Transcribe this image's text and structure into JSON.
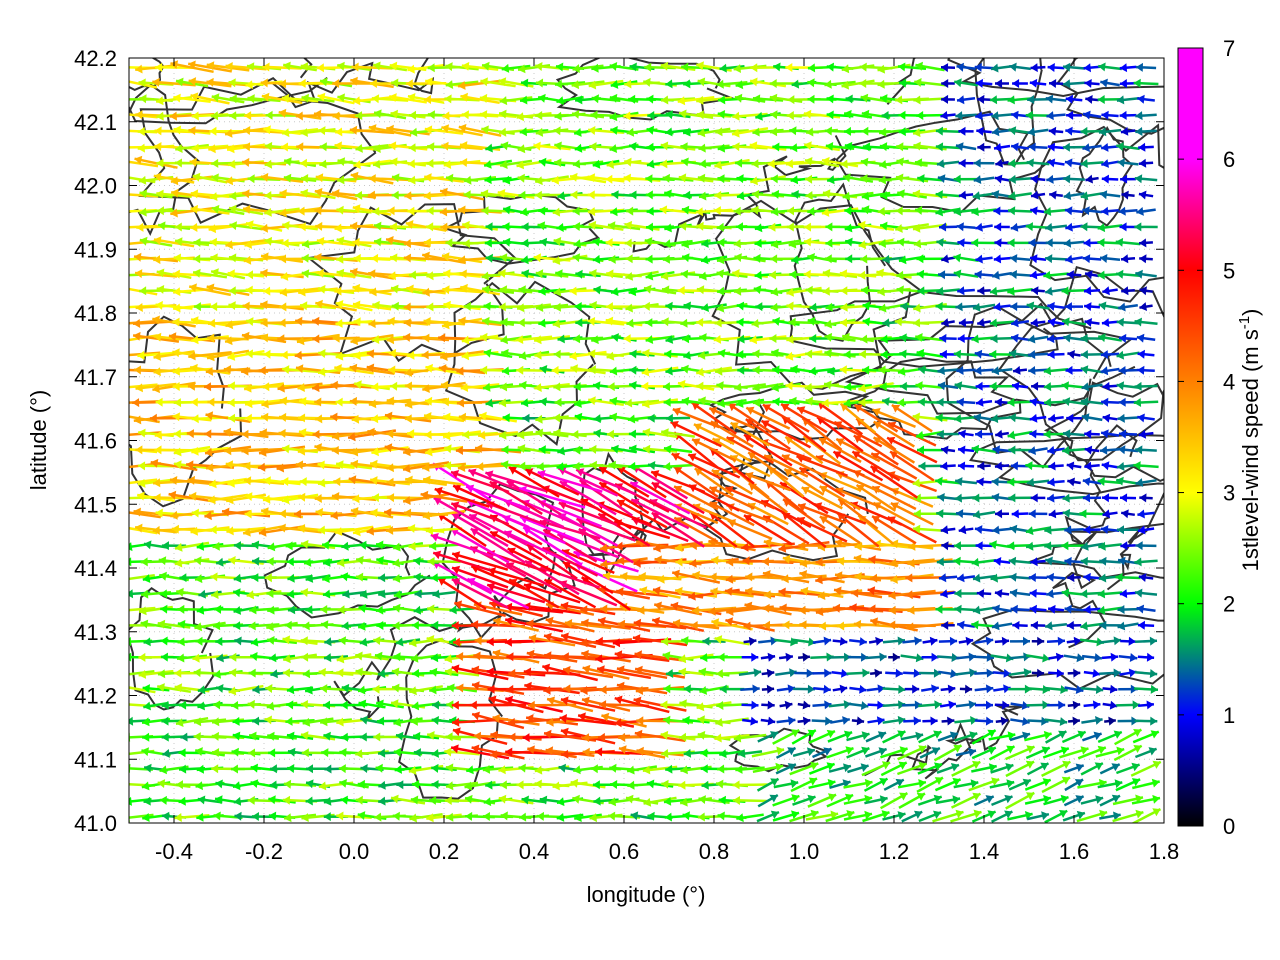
{
  "chart_data": {
    "type": "vector-field",
    "xlabel": "longitude (°)",
    "ylabel": "latitude (°)",
    "colorbar_label": {
      "main": "1stlevel-wind speed (m s",
      "sup": "-1",
      "close": ")"
    },
    "xlim": [
      -0.5,
      1.8
    ],
    "ylim": [
      41.0,
      42.2
    ],
    "xticks": [
      -0.4,
      -0.2,
      0.0,
      0.2,
      0.4,
      0.6,
      0.8,
      1.0,
      1.2,
      1.4,
      1.6,
      1.8
    ],
    "xtick_labels": [
      "-0.4",
      "-0.2",
      "0.0",
      "0.2",
      "0.4",
      "0.6",
      "0.8",
      "1.0",
      "1.2",
      "1.4",
      "1.6",
      "1.8"
    ],
    "yticks": [
      41.0,
      41.1,
      41.2,
      41.3,
      41.4,
      41.5,
      41.6,
      41.7,
      41.8,
      41.9,
      42.0,
      42.1,
      42.2
    ],
    "ytick_labels": [
      "41.0",
      "41.1",
      "41.2",
      "41.3",
      "41.4",
      "41.5",
      "41.6",
      "41.7",
      "41.8",
      "41.9",
      "42.0",
      "42.1",
      "42.2"
    ],
    "colorbar_range": [
      0,
      7
    ],
    "colorbar_ticks": [
      0,
      1,
      2,
      3,
      4,
      5,
      6,
      7
    ],
    "colorbar_tick_labels": [
      "0",
      "1",
      "2",
      "3",
      "4",
      "5",
      "6",
      "7"
    ],
    "colormap": [
      "#000000",
      "#0000ff",
      "#00ff00",
      "#ffff00",
      "#ff8000",
      "#ff0000",
      "#ff00ff"
    ],
    "grid": true,
    "topography_contours": true,
    "regions": [
      {
        "lon": [
          -0.5,
          0.35
        ],
        "lat": [
          41.45,
          41.8
        ],
        "speed": 4.0,
        "dir_deg": 180
      },
      {
        "lon": [
          -0.5,
          0.4
        ],
        "lat": [
          41.8,
          42.2
        ],
        "speed": 3.6,
        "dir_deg": 178
      },
      {
        "lon": [
          0.2,
          0.75
        ],
        "lat": [
          41.35,
          41.55
        ],
        "speed": 6.3,
        "dir_deg": 155
      },
      {
        "lon": [
          0.25,
          0.7
        ],
        "lat": [
          41.1,
          41.35
        ],
        "speed": 5.2,
        "dir_deg": 175
      },
      {
        "lon": [
          0.6,
          1.3
        ],
        "lat": [
          41.3,
          41.45
        ],
        "speed": 4.6,
        "dir_deg": 178
      },
      {
        "lon": [
          0.75,
          1.25
        ],
        "lat": [
          41.45,
          41.65
        ],
        "speed": 5.0,
        "dir_deg": 150
      },
      {
        "lon": [
          0.9,
          1.8
        ],
        "lat": [
          41.0,
          41.15
        ],
        "speed": 2.3,
        "dir_deg": 20
      },
      {
        "lon": [
          0.85,
          1.8
        ],
        "lat": [
          41.15,
          41.3
        ],
        "speed": 1.3,
        "dir_deg": 0
      },
      {
        "lon": [
          1.3,
          1.8
        ],
        "lat": [
          41.3,
          42.2
        ],
        "speed": 1.5,
        "dir_deg": 180
      },
      {
        "lon": [
          0.3,
          1.2
        ],
        "lat": [
          41.65,
          42.2
        ],
        "speed": 2.8,
        "dir_deg": 180
      }
    ]
  }
}
